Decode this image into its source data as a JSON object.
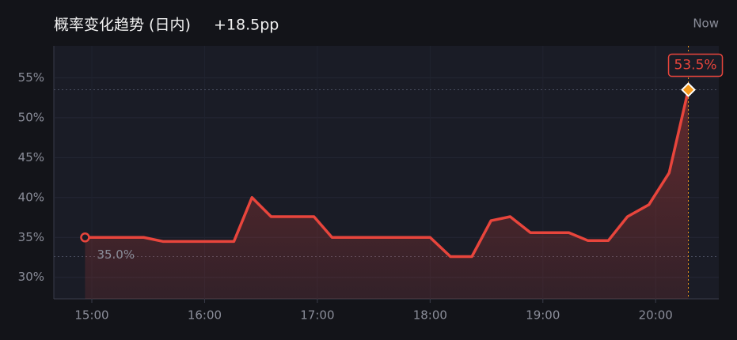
{
  "chart_data": {
    "type": "line",
    "title": "概率变化趋势 (日内)",
    "change": "+18.5pp",
    "now_label": "Now",
    "x": [
      14.94,
      15.46,
      15.63,
      16.26,
      16.42,
      16.59,
      16.97,
      17.13,
      18.0,
      18.18,
      18.37,
      18.54,
      18.71,
      18.89,
      19.23,
      19.4,
      19.58,
      19.75,
      19.94,
      20.12,
      20.29
    ],
    "values": [
      35.0,
      35.0,
      34.5,
      34.5,
      40.0,
      37.6,
      37.6,
      35.0,
      35.0,
      32.6,
      32.6,
      37.1,
      37.6,
      35.6,
      35.6,
      34.6,
      34.6,
      37.6,
      39.1,
      43.1,
      53.5
    ],
    "value_labels": [
      "35.0%",
      null,
      null,
      null,
      null,
      null,
      null,
      null,
      null,
      null,
      null,
      null,
      null,
      null,
      null,
      null,
      null,
      null,
      null,
      null,
      "53.5%"
    ],
    "color": "#e8453c",
    "end_marker_color": "#f59a1c",
    "reference_lines": [
      53.5,
      32.6
    ],
    "xlim": [
      14.663,
      20.56
    ],
    "ylim": [
      27.3,
      59
    ],
    "xticks": [
      {
        "value": 15,
        "label": "15:00"
      },
      {
        "value": 16,
        "label": "16:00"
      },
      {
        "value": 17,
        "label": "17:00"
      },
      {
        "value": 18,
        "label": "18:00"
      },
      {
        "value": 19,
        "label": "19:00"
      },
      {
        "value": 20,
        "label": "20:00"
      }
    ],
    "yticks": [
      {
        "value": 30,
        "label": "30%"
      },
      {
        "value": 35,
        "label": "35%"
      },
      {
        "value": 40,
        "label": "40%"
      },
      {
        "value": 45,
        "label": "45%"
      },
      {
        "value": 50,
        "label": "50%"
      },
      {
        "value": 55,
        "label": "55%"
      }
    ],
    "grid": true
  }
}
